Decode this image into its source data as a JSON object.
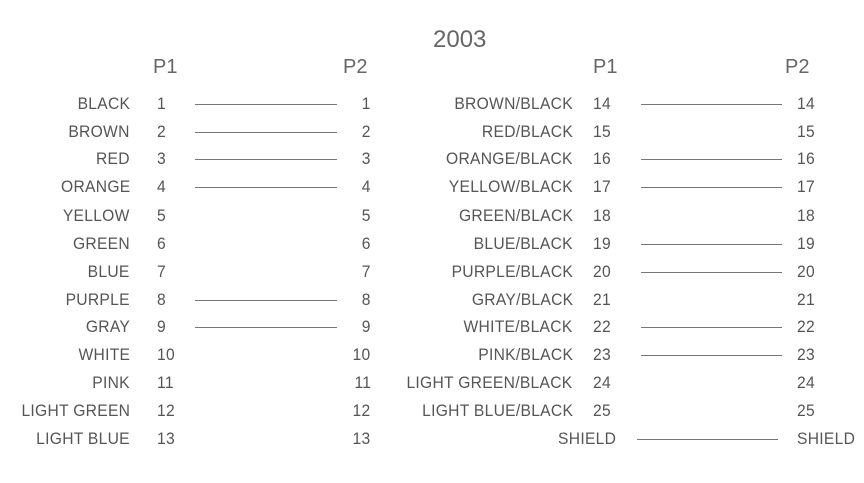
{
  "title": "2003",
  "headers": {
    "left_p1": "P1",
    "left_p2": "P2",
    "right_p1": "P1",
    "right_p2": "P2"
  },
  "left_rows": [
    {
      "color": "BLACK",
      "p1": "1",
      "p2": "1",
      "connected": true
    },
    {
      "color": "BROWN",
      "p1": "2",
      "p2": "2",
      "connected": true
    },
    {
      "color": "RED",
      "p1": "3",
      "p2": "3",
      "connected": true
    },
    {
      "color": "ORANGE",
      "p1": "4",
      "p2": "4",
      "connected": true
    },
    {
      "color": "YELLOW",
      "p1": "5",
      "p2": "5",
      "connected": false
    },
    {
      "color": "GREEN",
      "p1": "6",
      "p2": "6",
      "connected": false
    },
    {
      "color": "BLUE",
      "p1": "7",
      "p2": "7",
      "connected": false
    },
    {
      "color": "PURPLE",
      "p1": "8",
      "p2": "8",
      "connected": true
    },
    {
      "color": "GRAY",
      "p1": "9",
      "p2": "9",
      "connected": true
    },
    {
      "color": "WHITE",
      "p1": "10",
      "p2": "10",
      "connected": false
    },
    {
      "color": "PINK",
      "p1": "11",
      "p2": "11",
      "connected": false
    },
    {
      "color": "LIGHT GREEN",
      "p1": "12",
      "p2": "12",
      "connected": false
    },
    {
      "color": "LIGHT BLUE",
      "p1": "13",
      "p2": "13",
      "connected": false
    }
  ],
  "right_rows": [
    {
      "color": "BROWN/BLACK",
      "p1": "14",
      "p2": "14",
      "connected": true
    },
    {
      "color": "RED/BLACK",
      "p1": "15",
      "p2": "15",
      "connected": false
    },
    {
      "color": "ORANGE/BLACK",
      "p1": "16",
      "p2": "16",
      "connected": true
    },
    {
      "color": "YELLOW/BLACK",
      "p1": "17",
      "p2": "17",
      "connected": true
    },
    {
      "color": "GREEN/BLACK",
      "p1": "18",
      "p2": "18",
      "connected": false
    },
    {
      "color": "BLUE/BLACK",
      "p1": "19",
      "p2": "19",
      "connected": true
    },
    {
      "color": "PURPLE/BLACK",
      "p1": "20",
      "p2": "20",
      "connected": true
    },
    {
      "color": "GRAY/BLACK",
      "p1": "21",
      "p2": "21",
      "connected": false
    },
    {
      "color": "WHITE/BLACK",
      "p1": "22",
      "p2": "22",
      "connected": true
    },
    {
      "color": "PINK/BLACK",
      "p1": "23",
      "p2": "23",
      "connected": true
    },
    {
      "color": "LIGHT GREEN/BLACK",
      "p1": "24",
      "p2": "24",
      "connected": false
    },
    {
      "color": "LIGHT BLUE/BLACK",
      "p1": "25",
      "p2": "25",
      "connected": false
    },
    {
      "color": "",
      "p1": "SHIELD",
      "p2": "SHIELD",
      "connected": true
    }
  ]
}
